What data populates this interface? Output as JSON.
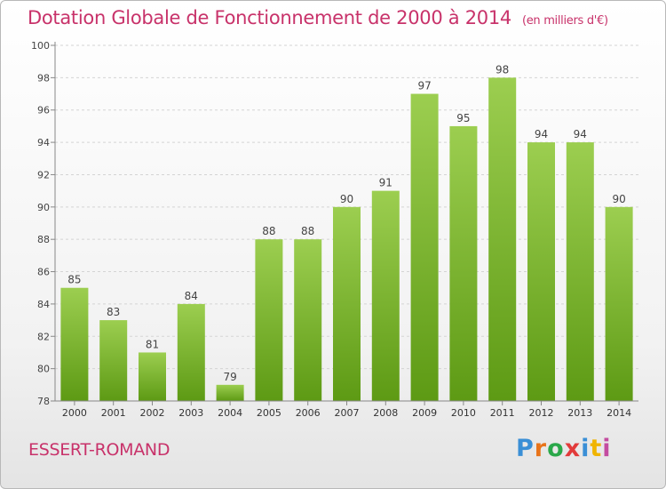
{
  "header": {
    "title": "Dotation Globale de Fonctionnement de 2000 à 2014",
    "unit": "(en milliers d'€)"
  },
  "footer": {
    "commune": "ESSERT-ROMAND",
    "brand": "Proxiti",
    "brand_colors": [
      "#3a8fd6",
      "#e8741a",
      "#2aa84a",
      "#e23b3b",
      "#3a8fd6",
      "#f0b400",
      "#c44ca0"
    ]
  },
  "colors": {
    "bar_top": "#9cce50",
    "bar_bottom": "#5d9a14",
    "accent": "#c8326a"
  },
  "chart_data": {
    "type": "bar",
    "title": "Dotation Globale de Fonctionnement de 2000 à 2014",
    "categories": [
      "2000",
      "2001",
      "2002",
      "2003",
      "2004",
      "2005",
      "2006",
      "2007",
      "2008",
      "2009",
      "2010",
      "2011",
      "2012",
      "2013",
      "2014"
    ],
    "values": [
      85,
      83,
      81,
      84,
      79,
      88,
      88,
      90,
      91,
      97,
      95,
      98,
      94,
      94,
      90
    ],
    "ylim": [
      78,
      100
    ],
    "yticks": [
      78,
      80,
      82,
      84,
      86,
      88,
      90,
      92,
      94,
      96,
      98,
      100
    ],
    "grid": true,
    "data_labels": true
  }
}
